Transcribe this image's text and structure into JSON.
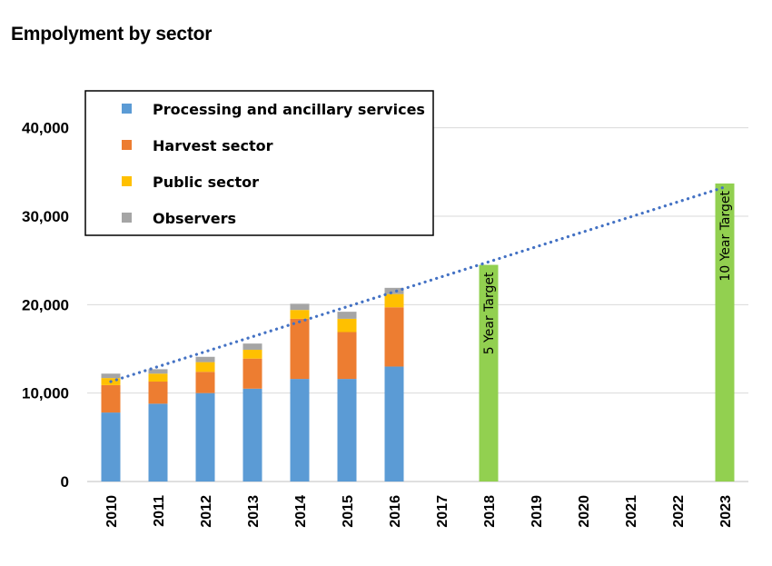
{
  "chart_data": {
    "type": "bar",
    "stacked": true,
    "title": "Empolyment by sector",
    "xlabel": "",
    "ylabel": "",
    "ylim": [
      0,
      45000
    ],
    "yticks": [
      0,
      10000,
      20000,
      30000,
      40000
    ],
    "ytick_labels": [
      "0",
      "10,000",
      "20,000",
      "30,000",
      "40,000"
    ],
    "grid": true,
    "legend_position": "top-left",
    "categories": [
      "2010",
      "2011",
      "2012",
      "2013",
      "2014",
      "2015",
      "2016",
      "2017",
      "2018",
      "2019",
      "2020",
      "2021",
      "2022",
      "2023"
    ],
    "series": [
      {
        "name": "Processing and ancillary services",
        "color": "#5B9BD5",
        "values": [
          7800,
          8800,
          10000,
          10500,
          11600,
          11600,
          13000,
          null,
          null,
          null,
          null,
          null,
          null,
          null
        ]
      },
      {
        "name": "Harvest sector",
        "color": "#ED7D31",
        "values": [
          3100,
          2500,
          2400,
          3400,
          6800,
          5300,
          6700,
          null,
          null,
          null,
          null,
          null,
          null,
          null
        ]
      },
      {
        "name": "Public sector",
        "color": "#FFC000",
        "values": [
          800,
          900,
          1100,
          1000,
          1000,
          1500,
          1500,
          null,
          null,
          null,
          null,
          null,
          null,
          null
        ]
      },
      {
        "name": "Observers",
        "color": "#A5A5A5",
        "values": [
          500,
          500,
          600,
          700,
          700,
          800,
          700,
          null,
          null,
          null,
          null,
          null,
          null,
          null
        ]
      }
    ],
    "targets": [
      {
        "category": "2018",
        "value": 24500,
        "label": "5 Year Target",
        "color": "#92D050"
      },
      {
        "category": "2023",
        "value": 33700,
        "label": "10 Year Target",
        "color": "#92D050"
      }
    ],
    "trendline": {
      "style": "dotted",
      "color": "#4472C4",
      "start": {
        "category": "2010",
        "value": 11300
      },
      "end": {
        "category": "2023",
        "value": 33300
      }
    }
  }
}
